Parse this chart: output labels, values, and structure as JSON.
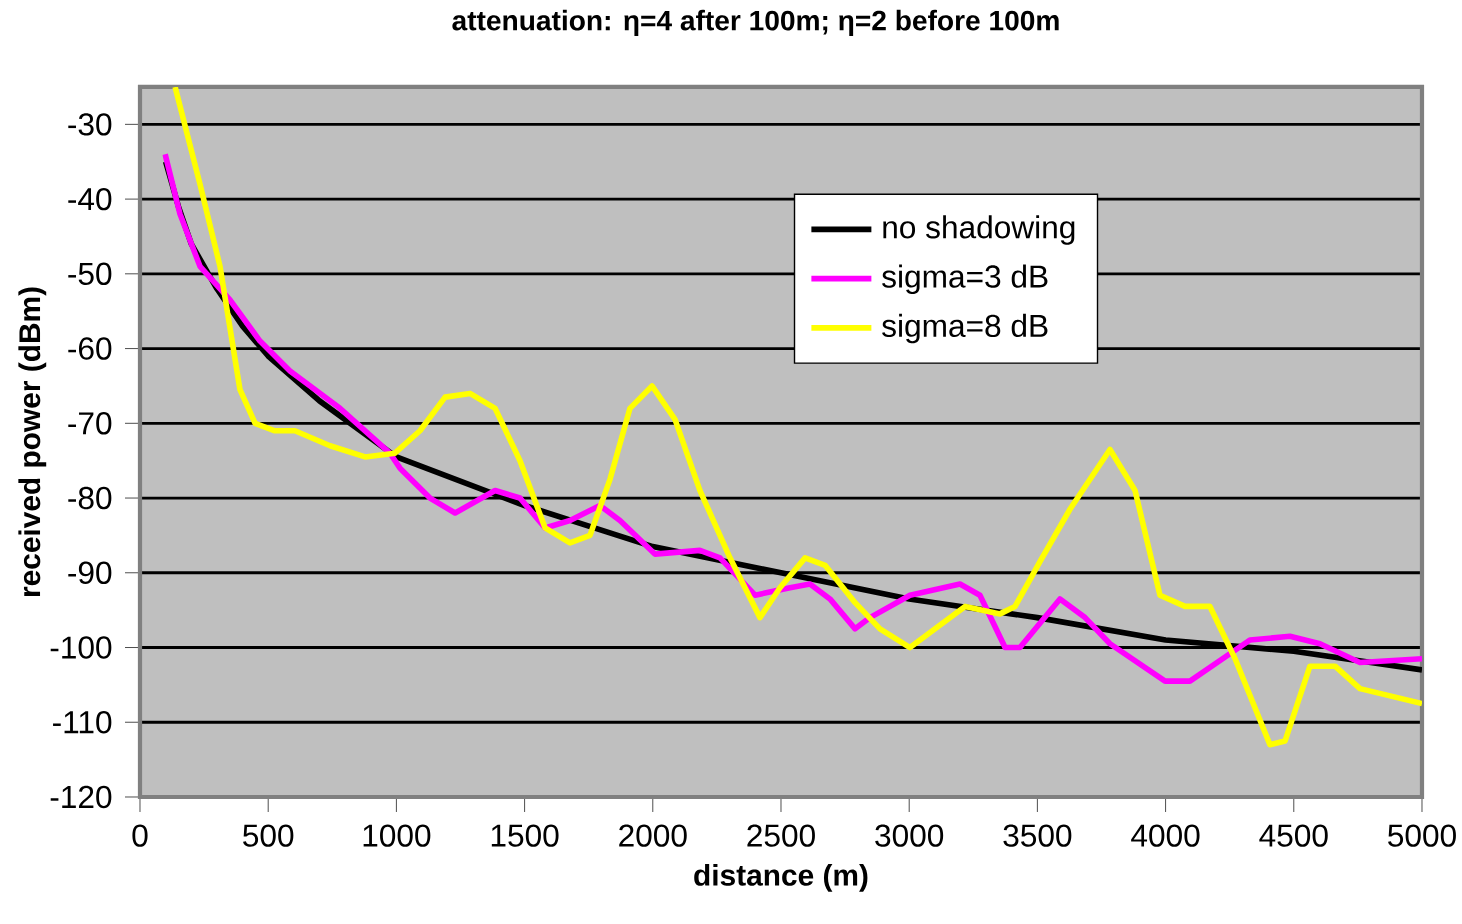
{
  "chart_data": {
    "type": "line",
    "title": "attenuation: η=4 after 100m; η=2 before 100m",
    "xlabel": "distance (m)",
    "ylabel": "received power (dBm)",
    "xlim": [
      0,
      5000
    ],
    "ylim": [
      -120,
      -25
    ],
    "xticks": [
      0,
      500,
      1000,
      1500,
      2000,
      2500,
      3000,
      3500,
      4000,
      4500,
      5000
    ],
    "yticks": [
      -120,
      -110,
      -100,
      -90,
      -80,
      -70,
      -60,
      -50,
      -40,
      -30
    ],
    "grid": "y",
    "legend": "top right",
    "marker": "none",
    "line_style": "solid",
    "series": [
      {
        "name": "no shadowing",
        "color": "#000000",
        "x": [
          100,
          150,
          200,
          300,
          400,
          500,
          700,
          1000,
          1500,
          2000,
          2500,
          3000,
          3500,
          4000,
          4500,
          5000
        ],
        "values": [
          -35,
          -41,
          -46,
          -52,
          -57,
          -61,
          -67,
          -74.5,
          -81,
          -86.5,
          -90,
          -93.5,
          -96,
          -99,
          -100.5,
          -103
        ]
      },
      {
        "name": "sigma=3 dB",
        "color": "#ff00ff",
        "x": [
          98,
          156,
          234,
          351,
          468,
          585,
          780,
          975,
          1014,
          1131,
          1229,
          1385,
          1482,
          1580,
          1677,
          1794,
          1872,
          2008,
          2184,
          2262,
          2399,
          2535,
          2613,
          2691,
          2789,
          2847,
          3003,
          3198,
          3276,
          3374,
          3432,
          3588,
          3686,
          3783,
          3998,
          4095,
          4329,
          4485,
          4602,
          4758,
          5000
        ],
        "values": [
          -34,
          -42,
          -49,
          -53.5,
          -59,
          -63,
          -68,
          -74,
          -76,
          -80,
          -82,
          -79,
          -80,
          -84,
          -83,
          -81,
          -83,
          -87.5,
          -87,
          -88,
          -93,
          -92,
          -91.5,
          -93.5,
          -97.5,
          -96,
          -93,
          -91.5,
          -93,
          -100,
          -100,
          -93.5,
          -96,
          -99.5,
          -104.5,
          -104.5,
          -99,
          -98.5,
          -99.5,
          -102,
          -101.5
        ]
      },
      {
        "name": "sigma=8 dB",
        "color": "#ffff00",
        "x": [
          137,
          234,
          312,
          390,
          449,
          526,
          604,
          741,
          878,
          994,
          1092,
          1190,
          1287,
          1385,
          1482,
          1580,
          1677,
          1755,
          1833,
          1911,
          1997,
          2087,
          2184,
          2301,
          2418,
          2496,
          2594,
          2672,
          2789,
          2886,
          3003,
          3101,
          3218,
          3354,
          3413,
          3510,
          3627,
          3783,
          3881,
          3978,
          4076,
          4173,
          4271,
          4407,
          4466,
          4563,
          4661,
          4758,
          5000
        ],
        "values": [
          -25,
          -38,
          -49,
          -65.5,
          -70,
          -71,
          -71,
          -73,
          -74.5,
          -74,
          -71,
          -66.5,
          -66,
          -68,
          -75,
          -84,
          -86,
          -85,
          -77.5,
          -68,
          -65,
          -69.5,
          -79,
          -88,
          -96,
          -92,
          -88,
          -89,
          -94,
          -97.5,
          -100,
          -97.5,
          -94.5,
          -95.5,
          -94.5,
          -88.5,
          -81.5,
          -73.5,
          -79,
          -93,
          -94.5,
          -94.5,
          -101.5,
          -113,
          -112.5,
          -102.5,
          -102.5,
          -105.5,
          -107.5
        ]
      }
    ]
  }
}
